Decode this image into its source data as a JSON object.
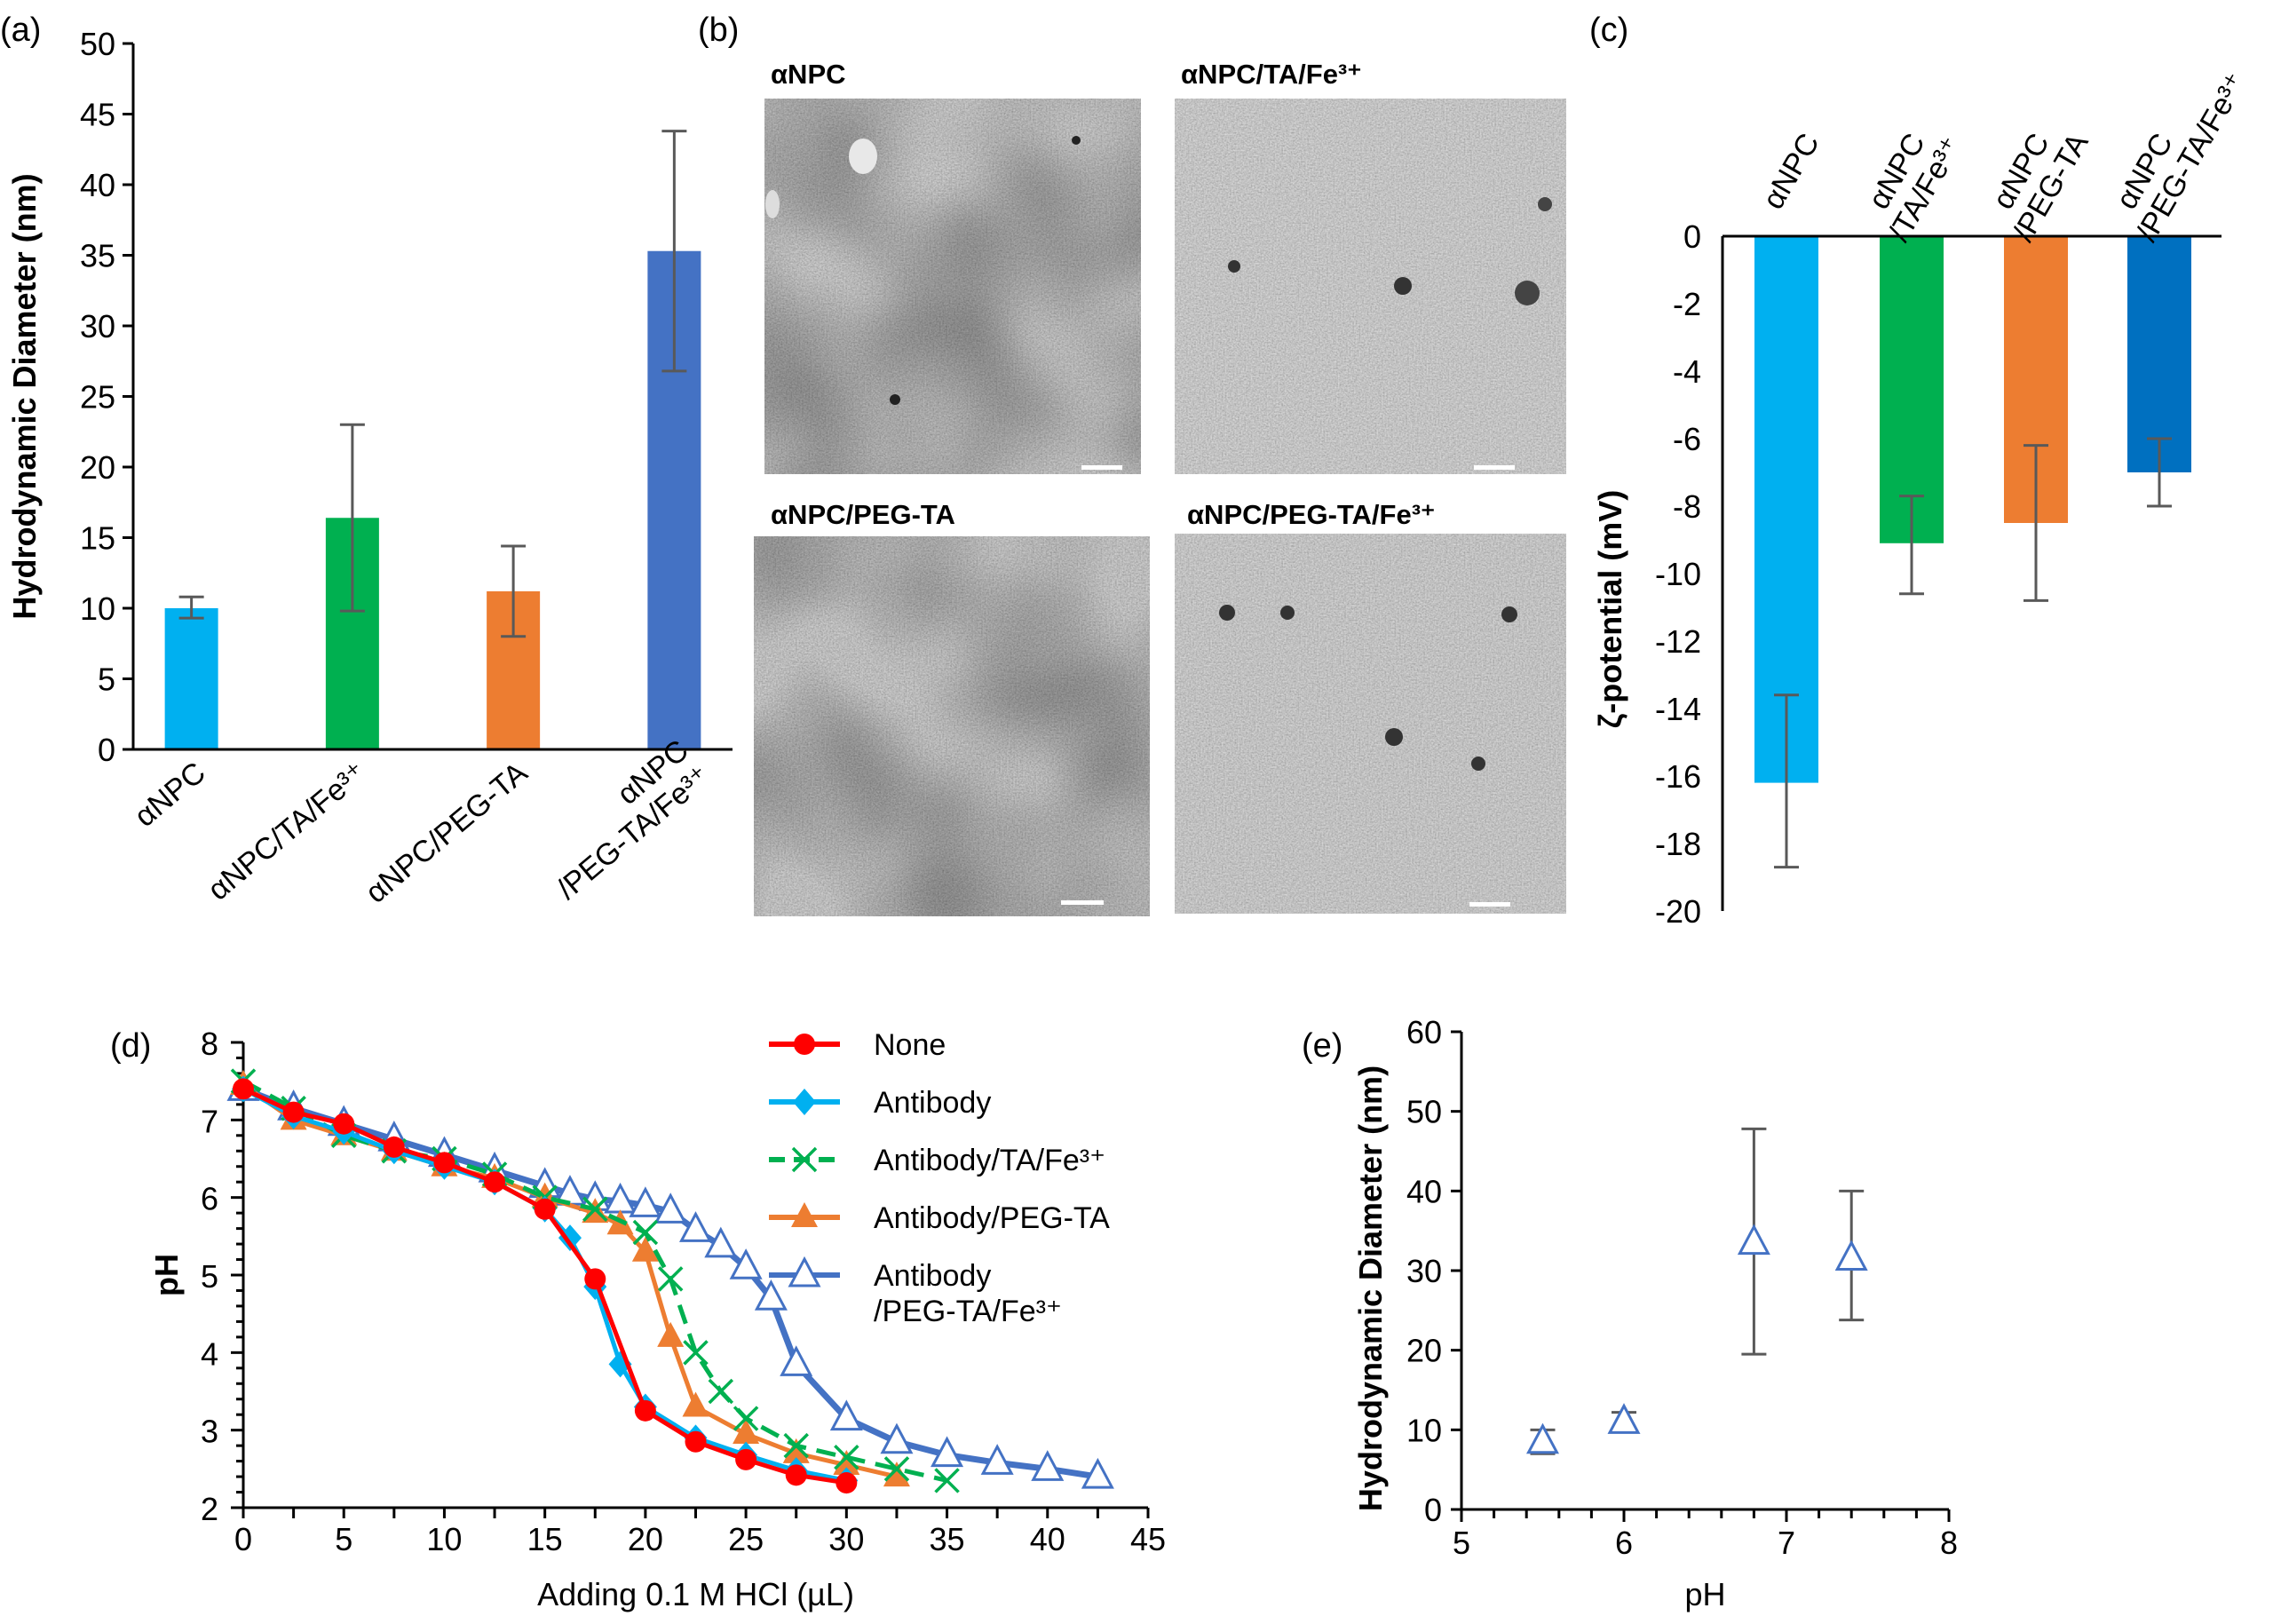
{
  "panel_labels": {
    "a": "(a)",
    "b": "(b)",
    "c": "(c)",
    "d": "(d)",
    "e": "(e)"
  },
  "tem_images": [
    {
      "label": "αNPC"
    },
    {
      "label": "αNPC/TA/Fe³⁺"
    },
    {
      "label": "αNPC/PEG-TA"
    },
    {
      "label": "αNPC/PEG-TA/Fe³⁺"
    }
  ],
  "chart_data": [
    {
      "id": "a",
      "type": "bar",
      "ylabel": "Hydrodynamic Diameter (nm)",
      "xlabel": "",
      "ylim": [
        0,
        50
      ],
      "yticks": [
        "0",
        "5",
        "10",
        "15",
        "20",
        "25",
        "30",
        "35",
        "40",
        "45",
        "50"
      ],
      "categories": [
        [
          "αNPC"
        ],
        [
          "αNPC/TA/Fe³⁺"
        ],
        [
          "αNPC/PEG-TA"
        ],
        [
          "αNPC",
          "/PEG-TA/Fe³⁺"
        ]
      ],
      "values": [
        10.0,
        16.4,
        11.2,
        35.3
      ],
      "err_low": [
        9.3,
        9.8,
        8.0,
        26.8
      ],
      "err_high": [
        10.8,
        23.0,
        14.4,
        43.8
      ],
      "colors": [
        "#00b0f0",
        "#00b050",
        "#ed7d31",
        "#4472c4"
      ],
      "grid": false
    },
    {
      "id": "c",
      "type": "bar",
      "ylabel": "ζ-potential (mV)",
      "xlabel": "",
      "ylim": [
        -20,
        0
      ],
      "yticks": [
        "0",
        "-2",
        "-4",
        "-6",
        "-8",
        "-10",
        "-12",
        "-14",
        "-16",
        "-18",
        "-20"
      ],
      "categories": [
        [
          "αNPC"
        ],
        [
          "αNPC",
          "/TA/Fe³⁺"
        ],
        [
          "αNPC",
          "/PEG-TA"
        ],
        [
          "αNPC",
          "/PEG-TA/Fe³⁺"
        ]
      ],
      "values": [
        -16.2,
        -9.1,
        -8.5,
        -7.0
      ],
      "err_low": [
        -18.7,
        -10.6,
        -10.8,
        -8.0
      ],
      "err_high": [
        -13.6,
        -7.7,
        -6.2,
        -6.0
      ],
      "colors": [
        "#00b0f0",
        "#00b050",
        "#ed7d31",
        "#0070c0"
      ],
      "grid": false
    },
    {
      "id": "d",
      "type": "line",
      "xlabel": "Adding 0.1 M HCl (µL)",
      "ylabel": "pH",
      "xlim": [
        0,
        45
      ],
      "ylim": [
        2,
        8
      ],
      "xticks": [
        "0",
        "5",
        "10",
        "15",
        "20",
        "25",
        "30",
        "35",
        "40",
        "45"
      ],
      "yticks": [
        "2",
        "3",
        "4",
        "5",
        "6",
        "7",
        "8"
      ],
      "legend": "top-right",
      "grid": false,
      "series": [
        {
          "name": "None",
          "color": "#ff0000",
          "marker": "circle",
          "dash": false,
          "x": [
            0,
            2.5,
            5,
            7.5,
            10,
            12.5,
            15,
            17.5,
            20,
            22.5,
            25,
            27.5,
            30
          ],
          "y": [
            7.4,
            7.1,
            6.95,
            6.65,
            6.45,
            6.2,
            5.85,
            4.95,
            3.25,
            2.85,
            2.62,
            2.42,
            2.32
          ]
        },
        {
          "name": "Antibody",
          "color": "#00b0f0",
          "marker": "diamond",
          "dash": false,
          "x": [
            0,
            2.5,
            5,
            7.5,
            10,
            12.5,
            15,
            16.25,
            17.5,
            18.75,
            20,
            22.5,
            25,
            27.5,
            30
          ],
          "y": [
            7.4,
            7.05,
            6.85,
            6.6,
            6.4,
            6.2,
            5.85,
            5.48,
            4.85,
            3.85,
            3.3,
            2.9,
            2.68,
            2.48,
            2.35
          ]
        },
        {
          "name": "Antibody/TA/Fe³⁺",
          "color": "#00b050",
          "marker": "x",
          "dash": true,
          "x": [
            0,
            2.5,
            5,
            7.5,
            10,
            12.5,
            15,
            17.5,
            20,
            21.25,
            22.5,
            23.75,
            25,
            27.5,
            30,
            32.5,
            35
          ],
          "y": [
            7.5,
            7.15,
            6.8,
            6.6,
            6.5,
            6.3,
            6.0,
            5.85,
            5.55,
            4.95,
            4.0,
            3.5,
            3.15,
            2.8,
            2.65,
            2.5,
            2.35
          ]
        },
        {
          "name": "Antibody/PEG-TA",
          "color": "#ed7d31",
          "marker": "triangle-filled",
          "dash": false,
          "x": [
            0,
            2.5,
            5,
            7.5,
            10,
            12.5,
            15,
            17.5,
            18.75,
            20,
            21.25,
            22.5,
            25,
            27.5,
            30,
            32.5
          ],
          "y": [
            7.45,
            7.0,
            6.8,
            6.6,
            6.4,
            6.25,
            6.0,
            5.8,
            5.65,
            5.3,
            4.2,
            3.3,
            2.95,
            2.7,
            2.55,
            2.4
          ]
        },
        {
          "name": "Antibody\n/PEG-TA/Fe³⁺",
          "color": "#4472c4",
          "marker": "triangle-open",
          "dash": false,
          "x": [
            0,
            2.5,
            5,
            7.5,
            10,
            12.5,
            15,
            16.25,
            17.5,
            18.75,
            20,
            21.25,
            22.5,
            23.75,
            25,
            26.25,
            27.5,
            30,
            32.5,
            35,
            37.5,
            40,
            42.5
          ],
          "y": [
            7.4,
            7.15,
            6.95,
            6.75,
            6.55,
            6.35,
            6.15,
            6.05,
            5.98,
            5.95,
            5.9,
            5.82,
            5.58,
            5.38,
            5.1,
            4.7,
            3.85,
            3.15,
            2.85,
            2.68,
            2.58,
            2.5,
            2.4
          ]
        }
      ]
    },
    {
      "id": "e",
      "type": "scatter",
      "xlabel": "pH",
      "ylabel": "Hydrodynamic Diameter (nm)",
      "xlim": [
        5,
        8
      ],
      "ylim": [
        0,
        60
      ],
      "xticks": [
        "5",
        "6",
        "7",
        "8"
      ],
      "yticks": [
        "0",
        "10",
        "20",
        "30",
        "40",
        "50",
        "60"
      ],
      "grid": false,
      "color": "#4472c4",
      "marker": "triangle-open",
      "x": [
        5.5,
        6.0,
        6.8,
        7.4
      ],
      "y": [
        8.5,
        11.0,
        33.5,
        31.5
      ],
      "err_low": [
        7.0,
        9.8,
        19.5,
        23.8
      ],
      "err_high": [
        10.0,
        12.2,
        47.8,
        40.0
      ]
    }
  ]
}
